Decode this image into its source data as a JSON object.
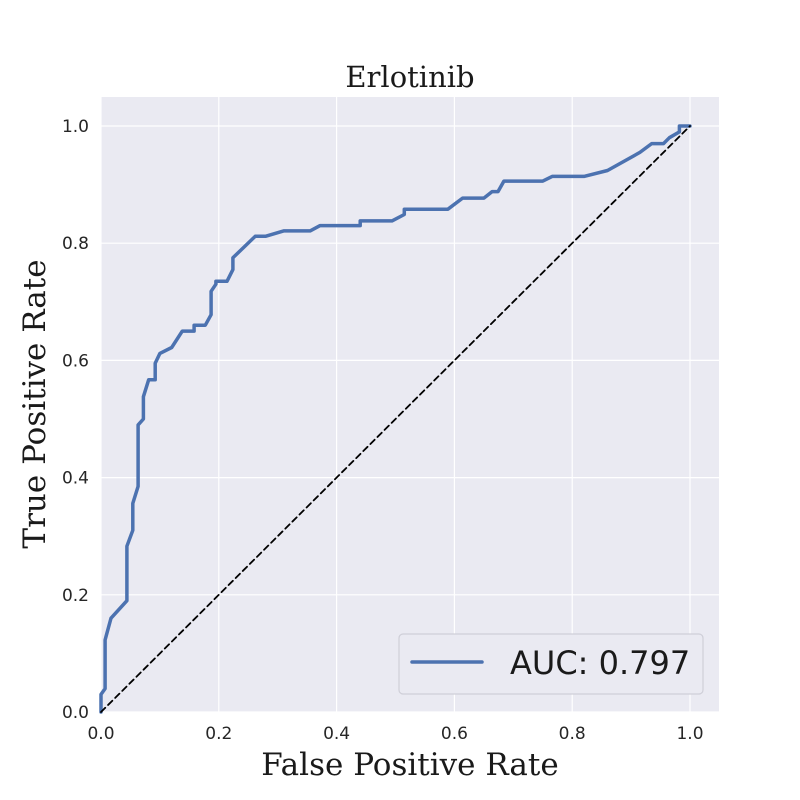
{
  "chart_data": {
    "type": "line",
    "title": "Erlotinib",
    "xlabel": "False Positive Rate",
    "ylabel": "True Positive Rate",
    "xlim": [
      0.0,
      1.0
    ],
    "ylim": [
      0.0,
      1.0
    ],
    "xticks": [
      "0.0",
      "0.2",
      "0.4",
      "0.6",
      "0.8",
      "1.0"
    ],
    "yticks": [
      "0.0",
      "0.2",
      "0.4",
      "0.6",
      "0.8",
      "1.0"
    ],
    "grid": true,
    "legend_position": "lower-right",
    "legend": [
      {
        "label": "AUC: 0.797",
        "color": "#4c72b0",
        "style": "solid"
      }
    ],
    "series": [
      {
        "name": "AUC: 0.797",
        "color": "#4c72b0",
        "style": "solid",
        "x": [
          0.0,
          0.0,
          0.007,
          0.007,
          0.017,
          0.044,
          0.044,
          0.054,
          0.054,
          0.063,
          0.063,
          0.072,
          0.072,
          0.081,
          0.092,
          0.092,
          0.1,
          0.12,
          0.138,
          0.158,
          0.158,
          0.177,
          0.187,
          0.187,
          0.195,
          0.195,
          0.214,
          0.224,
          0.224,
          0.262,
          0.28,
          0.31,
          0.355,
          0.372,
          0.44,
          0.44,
          0.494,
          0.515,
          0.515,
          0.589,
          0.614,
          0.65,
          0.664,
          0.674,
          0.684,
          0.75,
          0.766,
          0.82,
          0.86,
          0.915,
          0.935,
          0.955,
          0.965,
          0.982,
          0.982,
          1.0
        ],
        "y": [
          0.0,
          0.03,
          0.04,
          0.123,
          0.16,
          0.19,
          0.283,
          0.31,
          0.356,
          0.385,
          0.49,
          0.5,
          0.538,
          0.567,
          0.567,
          0.595,
          0.612,
          0.622,
          0.65,
          0.65,
          0.66,
          0.66,
          0.678,
          0.718,
          0.73,
          0.735,
          0.735,
          0.755,
          0.775,
          0.812,
          0.812,
          0.821,
          0.821,
          0.83,
          0.83,
          0.838,
          0.838,
          0.849,
          0.858,
          0.858,
          0.877,
          0.877,
          0.888,
          0.888,
          0.906,
          0.906,
          0.914,
          0.914,
          0.924,
          0.955,
          0.97,
          0.97,
          0.98,
          0.99,
          1.0,
          1.0
        ]
      },
      {
        "name": "",
        "color": "#000000",
        "style": "dashed",
        "x": [
          0.0,
          1.0
        ],
        "y": [
          0.0,
          1.0
        ]
      }
    ]
  }
}
